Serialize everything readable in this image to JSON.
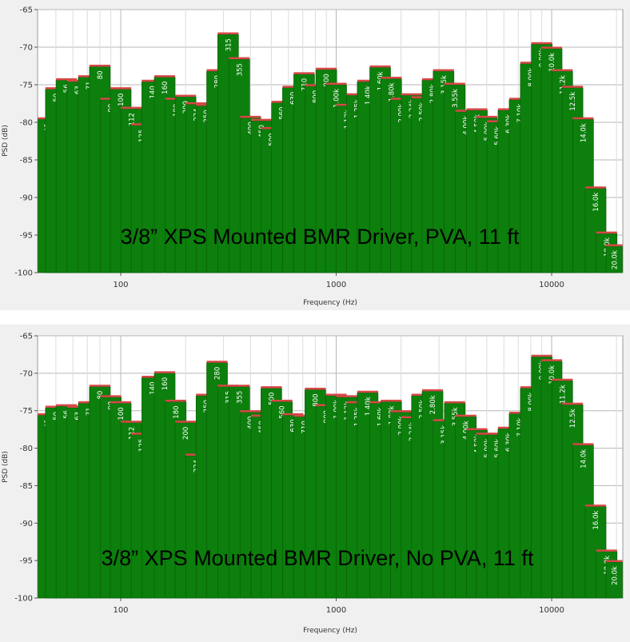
{
  "chart_data": [
    {
      "type": "bar",
      "title": "3/8” XPS Mounted BMR Driver, PVA, 11 ft",
      "xlabel": "Frequency (Hz)",
      "ylabel": "PSD (dB)",
      "xscale": "log",
      "ylim": [
        -100,
        -65
      ],
      "yticks": [
        "-65",
        "-70",
        "-75",
        "-80",
        "-85",
        "-90",
        "-95",
        "-100"
      ],
      "xticks": [
        "100",
        "1000",
        "10000"
      ],
      "grid": true,
      "categories": [
        "45",
        "50",
        "56",
        "63",
        "71",
        "80",
        "90",
        "100",
        "112",
        "125",
        "140",
        "160",
        "180",
        "200",
        "224",
        "250",
        "280",
        "315",
        "355",
        "400",
        "450",
        "500",
        "560",
        "630",
        "710",
        "800",
        "900",
        "1.00k",
        "1.12k",
        "1.25k",
        "1.40k",
        "1.60k",
        "1.80k",
        "2.00k",
        "2.24k",
        "2.50k",
        "2.80k",
        "3.15k",
        "3.55k",
        "4.00k",
        "4.50k",
        "5.00k",
        "5.60k",
        "6.30k",
        "7.10k",
        "8.00k",
        "9.00k",
        "10.0k",
        "11.2k",
        "12.5k",
        "14.0k",
        "16.0k",
        "18.0k",
        "20.0k"
      ],
      "series": [
        {
          "values": [
            -79.6,
            -75.6,
            -74.4,
            -74.6,
            -74.0,
            -72.6,
            -77.0,
            -75.6,
            -78.2,
            -80.4,
            -74.6,
            -74.0,
            -77.0,
            -76.6,
            -77.6,
            -77.8,
            -73.2,
            -68.3,
            -71.6,
            -79.4,
            -79.8,
            -80.9,
            -77.4,
            -75.4,
            -73.6,
            -75.2,
            -73.0,
            -75.0,
            -77.8,
            -76.4,
            -74.6,
            -72.7,
            -74.2,
            -77.0,
            -76.4,
            -76.8,
            -74.4,
            -73.2,
            -75.0,
            -78.6,
            -78.4,
            -79.4,
            -80.0,
            -78.4,
            -77.0,
            -72.2,
            -69.6,
            -70.2,
            -73.2,
            -75.4,
            -79.6,
            -88.8,
            -94.8,
            -96.5
          ]
        }
      ]
    },
    {
      "type": "bar",
      "title": "3/8” XPS Mounted BMR Driver, No PVA, 11 ft",
      "xlabel": "Frequency (Hz)",
      "ylabel": "PSD (dB)",
      "xscale": "log",
      "ylim": [
        -100,
        -65
      ],
      "yticks": [
        "-65",
        "-70",
        "-75",
        "-80",
        "-85",
        "-90",
        "-95",
        "-100"
      ],
      "xticks": [
        "100",
        "1000",
        "10000"
      ],
      "grid": true,
      "categories": [
        "45",
        "50",
        "56",
        "63",
        "71",
        "80",
        "90",
        "100",
        "112",
        "125",
        "140",
        "160",
        "180",
        "200",
        "224",
        "250",
        "280",
        "315",
        "355",
        "400",
        "450",
        "500",
        "560",
        "630",
        "710",
        "800",
        "900",
        "1.00k",
        "1.12k",
        "1.25k",
        "1.40k",
        "1.60k",
        "1.80k",
        "2.00k",
        "2.24k",
        "2.50k",
        "2.80k",
        "3.15k",
        "3.55k",
        "4.00k",
        "4.50k",
        "5.00k",
        "5.60k",
        "6.30k",
        "7.10k",
        "8.00k",
        "9.00k",
        "10.0k",
        "11.2k",
        "12.5k",
        "14.0k",
        "16.0k",
        "18.0k",
        "20.0k"
      ],
      "series": [
        {
          "values": [
            -75.6,
            -74.6,
            -74.4,
            -74.6,
            -74.0,
            -71.8,
            -73.2,
            -74.0,
            -76.6,
            -78.2,
            -70.6,
            -70.0,
            -73.8,
            -76.6,
            -81.0,
            -73.0,
            -68.6,
            -71.8,
            -71.8,
            -75.2,
            -75.8,
            -72.0,
            -73.8,
            -75.6,
            -75.8,
            -72.2,
            -74.4,
            -73.0,
            -73.2,
            -74.0,
            -72.6,
            -74.0,
            -73.8,
            -75.2,
            -76.0,
            -73.0,
            -72.4,
            -76.4,
            -74.0,
            -75.8,
            -77.6,
            -78.2,
            -78.2,
            -77.4,
            -75.4,
            -72.0,
            -67.8,
            -68.4,
            -71.0,
            -74.2,
            -79.6,
            -87.8,
            -93.8,
            -95.2
          ]
        }
      ]
    }
  ],
  "colors": {
    "bar": "#0c7f0c",
    "bar_edge": "#085a08",
    "bar_top_highlight": "#d64747",
    "bar_top_ghost": "#f5aaaa",
    "plot_background": "#ffffff",
    "panel_background": "#f0f0f0",
    "grid_major": "#b7b7b7",
    "grid_minor": "#dcdcdc"
  }
}
